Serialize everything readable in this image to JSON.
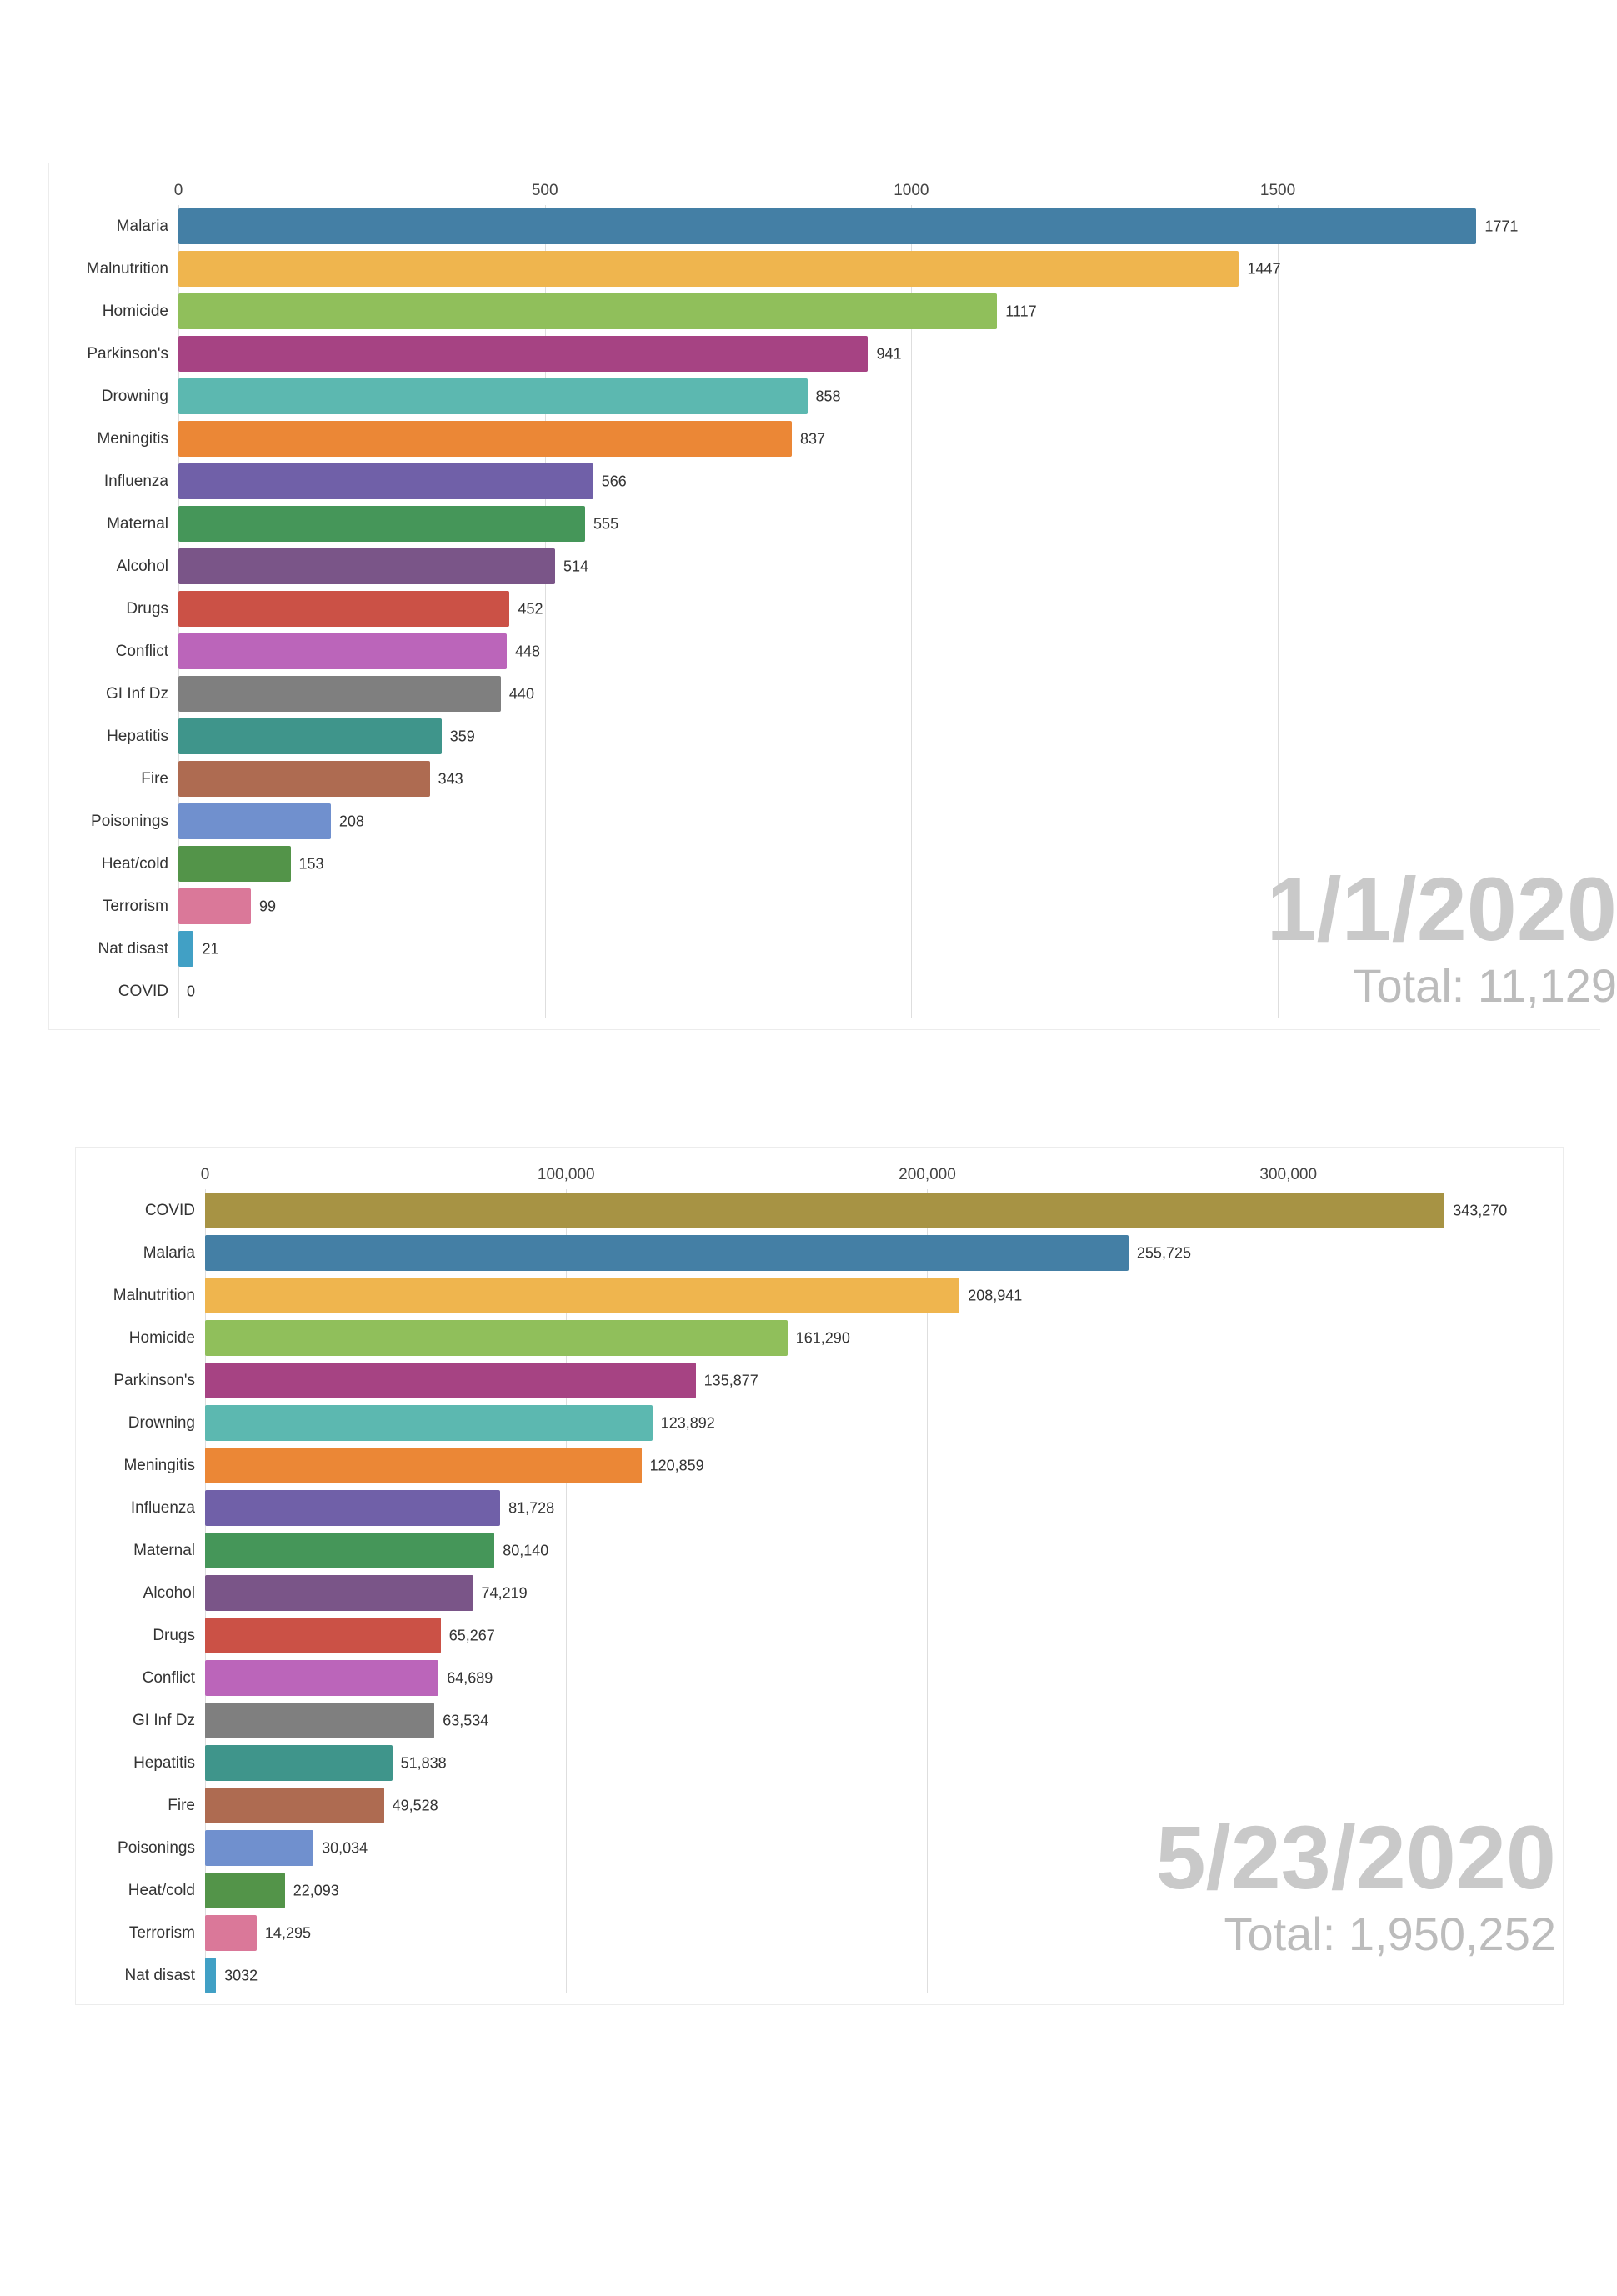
{
  "page": {
    "background_color": "#ffffff",
    "gridline_color": "#dedede",
    "label_color": "#333333",
    "tick_color": "#444444",
    "watermark_date_color": "#c9c9c9",
    "watermark_total_color": "#bcbcbc"
  },
  "chart_data": [
    {
      "type": "bar",
      "orientation": "horizontal",
      "title": "",
      "date_annotation": "1/1/2020",
      "total_annotation": "Total: 11,129",
      "legend": false,
      "grid": true,
      "xlim": [
        0,
        1940
      ],
      "xticks": [
        0,
        500,
        1000,
        1500
      ],
      "xtick_labels": [
        "0",
        "500",
        "1000",
        "1500"
      ],
      "categories": [
        "Malaria",
        "Malnutrition",
        "Homicide",
        "Parkinson's",
        "Drowning",
        "Meningitis",
        "Influenza",
        "Maternal",
        "Alcohol",
        "Drugs",
        "Conflict",
        "GI Inf Dz",
        "Hepatitis",
        "Fire",
        "Poisonings",
        "Heat/cold",
        "Terrorism",
        "Nat disast",
        "COVID"
      ],
      "values": [
        1771,
        1447,
        1117,
        941,
        858,
        837,
        566,
        555,
        514,
        452,
        448,
        440,
        359,
        343,
        208,
        153,
        99,
        21,
        0
      ],
      "value_labels": [
        "1771",
        "1447",
        "1117",
        "941",
        "858",
        "837",
        "566",
        "555",
        "514",
        "452",
        "448",
        "440",
        "359",
        "343",
        "208",
        "153",
        "99",
        "21",
        "0"
      ],
      "colors": [
        "#447fa5",
        "#efb54e",
        "#90bf5b",
        "#a64383",
        "#5cb8b0",
        "#eb8736",
        "#7060a8",
        "#459659",
        "#7a5588",
        "#cb5146",
        "#bb65ba",
        "#7f7f7f",
        "#3f958b",
        "#ae6b51",
        "#7090ce",
        "#539449",
        "#da7899",
        "#41a0c5",
        "#a79344"
      ]
    },
    {
      "type": "bar",
      "orientation": "horizontal",
      "title": "",
      "date_annotation": "5/23/2020",
      "total_annotation": "Total: 1,950,252",
      "legend": false,
      "grid": true,
      "xlim": [
        0,
        376000
      ],
      "xticks": [
        0,
        100000,
        200000,
        300000
      ],
      "xtick_labels": [
        "0",
        "100,000",
        "200,000",
        "300,000"
      ],
      "categories": [
        "COVID",
        "Malaria",
        "Malnutrition",
        "Homicide",
        "Parkinson's",
        "Drowning",
        "Meningitis",
        "Influenza",
        "Maternal",
        "Alcohol",
        "Drugs",
        "Conflict",
        "GI Inf Dz",
        "Hepatitis",
        "Fire",
        "Poisonings",
        "Heat/cold",
        "Terrorism",
        "Nat disast"
      ],
      "values": [
        343270,
        255725,
        208941,
        161290,
        135877,
        123892,
        120859,
        81728,
        80140,
        74219,
        65267,
        64689,
        63534,
        51838,
        49528,
        30034,
        22093,
        14295,
        3032
      ],
      "value_labels": [
        "343,270",
        "255,725",
        "208,941",
        "161,290",
        "135,877",
        "123,892",
        "120,859",
        "81,728",
        "80,140",
        "74,219",
        "65,267",
        "64,689",
        "63,534",
        "51,838",
        "49,528",
        "30,034",
        "22,093",
        "14,295",
        "3032"
      ],
      "colors": [
        "#a79344",
        "#447fa5",
        "#efb54e",
        "#90bf5b",
        "#a64383",
        "#5cb8b0",
        "#eb8736",
        "#7060a8",
        "#459659",
        "#7a5588",
        "#cb5146",
        "#bb65ba",
        "#7f7f7f",
        "#3f958b",
        "#ae6b51",
        "#7090ce",
        "#539449",
        "#da7899",
        "#41a0c5"
      ]
    }
  ]
}
